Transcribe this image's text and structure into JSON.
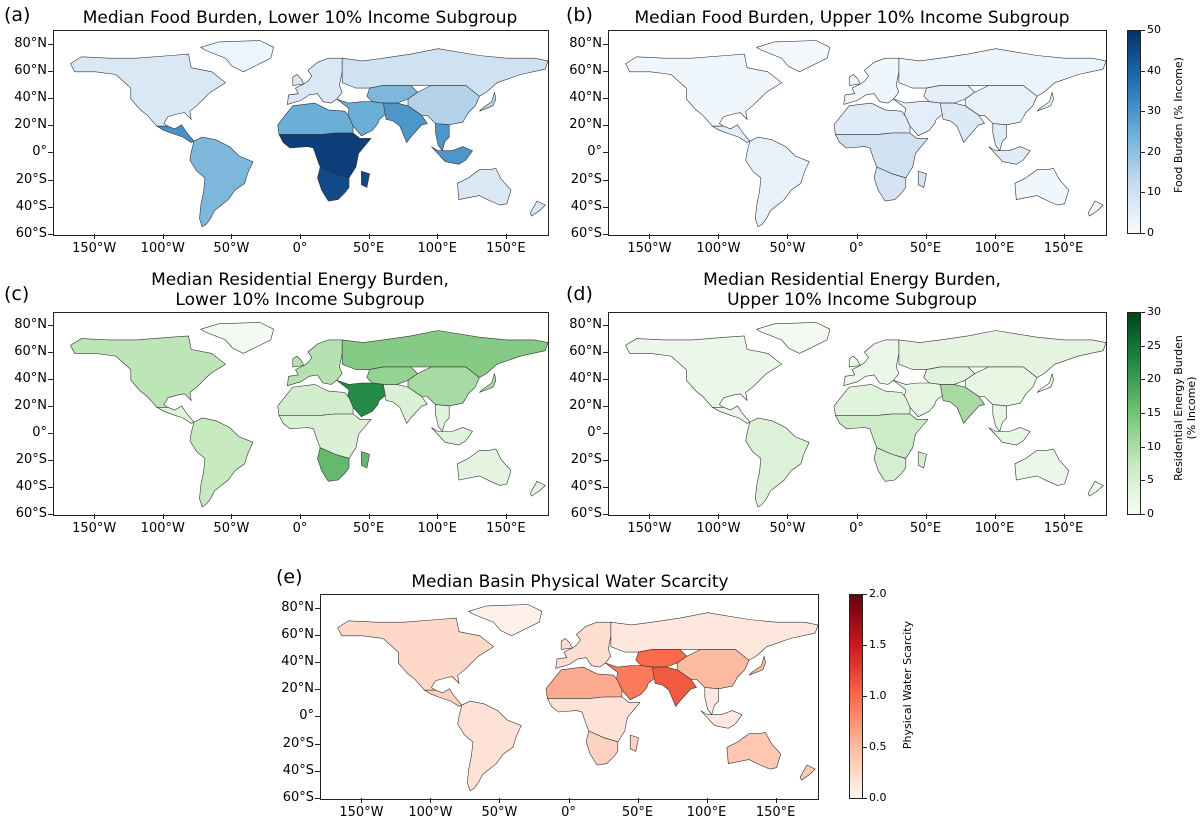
{
  "panels": {
    "a": {
      "letter": "(a)",
      "title": "Median Food Burden, Lower 10% Income Subgroup",
      "palette": "blues",
      "regions": {
        "na": 0.15,
        "ca": 0.62,
        "sa": 0.45,
        "eu": 0.15,
        "nafr": 0.5,
        "ssa": 0.95,
        "safr": 0.9,
        "me": 0.5,
        "ru": 0.2,
        "cas": 0.45,
        "sas": 0.6,
        "eas": 0.3,
        "sea": 0.6,
        "aus": 0.15,
        "grl": 0.05
      }
    },
    "b": {
      "letter": "(b)",
      "title": "Median Food Burden, Upper 10% Income Subgroup",
      "palette": "blues",
      "regions": {
        "na": 0.04,
        "ca": 0.1,
        "sa": 0.08,
        "eu": 0.04,
        "nafr": 0.12,
        "ssa": 0.2,
        "safr": 0.18,
        "me": 0.1,
        "ru": 0.06,
        "cas": 0.1,
        "sas": 0.14,
        "eas": 0.08,
        "sea": 0.12,
        "aus": 0.04,
        "grl": 0.02
      }
    },
    "c": {
      "letter": "(c)",
      "title_line1": "Median Residential Energy Burden,",
      "title_line2": "Lower 10% Income Subgroup",
      "palette": "greens",
      "regions": {
        "na": 0.28,
        "ca": 0.12,
        "sa": 0.25,
        "eu": 0.3,
        "nafr": 0.2,
        "ssa": 0.15,
        "safr": 0.55,
        "me": 0.75,
        "ru": 0.45,
        "cas": 0.4,
        "sas": 0.15,
        "eas": 0.35,
        "sea": 0.12,
        "aus": 0.1,
        "grl": 0.02
      }
    },
    "d": {
      "letter": "(d)",
      "title_line1": "Median Residential Energy Burden,",
      "title_line2": "Upper 10% Income Subgroup",
      "palette": "greens",
      "regions": {
        "na": 0.06,
        "ca": 0.06,
        "sa": 0.14,
        "eu": 0.06,
        "nafr": 0.12,
        "ssa": 0.22,
        "safr": 0.18,
        "me": 0.08,
        "ru": 0.1,
        "cas": 0.12,
        "sas": 0.35,
        "eas": 0.08,
        "sea": 0.08,
        "aus": 0.06,
        "grl": 0.02
      }
    },
    "e": {
      "letter": "(e)",
      "title": "Median Basin Physical Water Scarcity",
      "palette": "reds",
      "regions": {
        "na": 0.12,
        "ca": 0.15,
        "sa": 0.08,
        "eu": 0.1,
        "nafr": 0.3,
        "ssa": 0.08,
        "safr": 0.15,
        "me": 0.45,
        "ru": 0.06,
        "cas": 0.5,
        "sas": 0.55,
        "eas": 0.25,
        "sea": 0.05,
        "aus": 0.2,
        "grl": 0.02
      }
    }
  },
  "axes": {
    "lat_ticks": [
      "80°N",
      "60°N",
      "40°N",
      "20°N",
      "0°",
      "20°S",
      "40°S",
      "60°S"
    ],
    "lon_ticks": [
      "150°W",
      "100°W",
      "50°W",
      "0°",
      "50°E",
      "100°E",
      "150°E"
    ]
  },
  "colorbars": {
    "food": {
      "label": "Food Burden (% Income)",
      "ticks": [
        "50",
        "40",
        "30",
        "20",
        "10",
        "0"
      ],
      "colors": [
        "#f7fbff",
        "#c6dbef",
        "#6baed6",
        "#2171b5",
        "#08306b"
      ]
    },
    "energy": {
      "label_line1": "Residential Energy Burden",
      "label_line2": "(% Income)",
      "ticks": [
        "30",
        "25",
        "20",
        "15",
        "10",
        "5",
        "0"
      ],
      "colors": [
        "#f7fcf5",
        "#c7e9c0",
        "#74c476",
        "#238b45",
        "#00441b"
      ]
    },
    "water": {
      "label": "Physical Water Scarcity",
      "ticks": [
        "2.0",
        "1.5",
        "1.0",
        "0.5",
        "0.0"
      ],
      "colors": [
        "#fff5f0",
        "#fcbba1",
        "#fb6a4a",
        "#cb181d",
        "#67000d"
      ]
    }
  }
}
